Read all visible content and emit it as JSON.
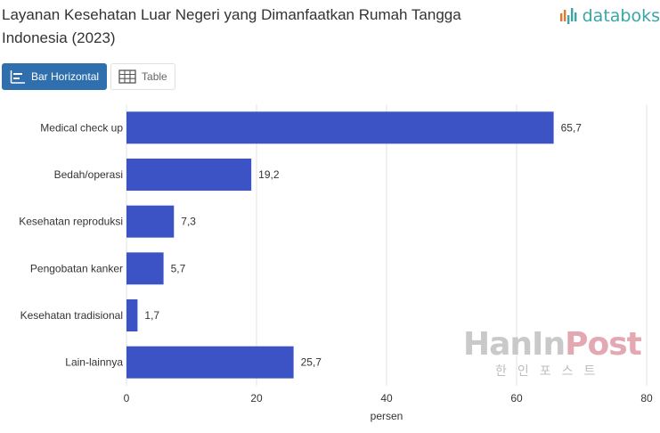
{
  "header": {
    "title": "Layanan Kesehatan Luar Negeri yang Dimanfaatkan Rumah Tangga Indonesia (2023)",
    "logo_text": "databoks"
  },
  "toolbar": {
    "bar_label": "Bar Horizontal",
    "table_label": "Table"
  },
  "watermark": {
    "main_a": "HanIn",
    "main_b": "Post",
    "sub": "한인포스트"
  },
  "colors": {
    "bar": "#3b53c4",
    "accent": "#2f6fae",
    "logo": "#3aa6a6"
  },
  "chart_data": {
    "type": "bar",
    "orientation": "horizontal",
    "categories": [
      "Medical check up",
      "Bedah/operasi",
      "Kesehatan reproduksi",
      "Pengobatan kanker",
      "Kesehatan tradisional",
      "Lain-lainnya"
    ],
    "values": [
      65.7,
      19.2,
      7.3,
      5.7,
      1.7,
      25.7
    ],
    "value_labels": [
      "65,7",
      "19,2",
      "7,3",
      "5,7",
      "1,7",
      "25,7"
    ],
    "title": "Layanan Kesehatan Luar Negeri yang Dimanfaatkan Rumah Tangga Indonesia (2023)",
    "xlabel": "persen",
    "ylabel": "",
    "xlim": [
      0,
      80
    ],
    "xticks": [
      0,
      20,
      40,
      60,
      80
    ],
    "grid": true
  }
}
